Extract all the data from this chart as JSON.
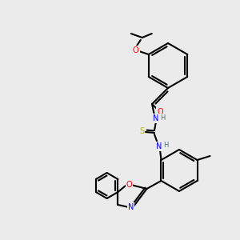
{
  "bg_color": "#ebebeb",
  "bond_color": "#000000",
  "bond_width": 1.5,
  "atom_colors": {
    "O": "#ff0000",
    "N": "#0000ff",
    "S": "#b8b800",
    "H": "#507070",
    "C": "#000000"
  },
  "font_size_atom": 7.0,
  "font_size_h": 6.0,
  "figsize": [
    3.0,
    3.0
  ],
  "dpi": 100
}
